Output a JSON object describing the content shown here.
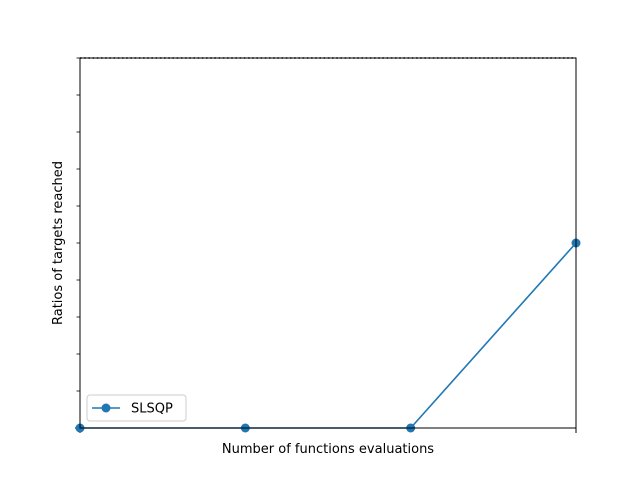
{
  "chart_data": {
    "type": "line",
    "title": "",
    "xlabel": "Number of functions evaluations",
    "ylabel": "Ratios of targets reached",
    "x": [
      1,
      2,
      3,
      4
    ],
    "xlim": [
      1,
      4
    ],
    "ylim": [
      0,
      1.0
    ],
    "series": [
      {
        "name": "SLSQP",
        "values": [
          0.0,
          0.0,
          0.0,
          0.5
        ],
        "color": "#1f77b4",
        "marker": "circle"
      }
    ],
    "reference_lines": [
      {
        "y": 1.0,
        "style": "dotted",
        "color": "#000000"
      }
    ],
    "y_minor_ticks": [
      0.1,
      0.2,
      0.3,
      0.4,
      0.5,
      0.6,
      0.7,
      0.8,
      0.9,
      1.0
    ],
    "x_ticks": [
      1,
      4
    ],
    "x_tick_labels_visible": false,
    "y_tick_labels_visible": false,
    "grid": false,
    "legend_position": "lower-left"
  }
}
